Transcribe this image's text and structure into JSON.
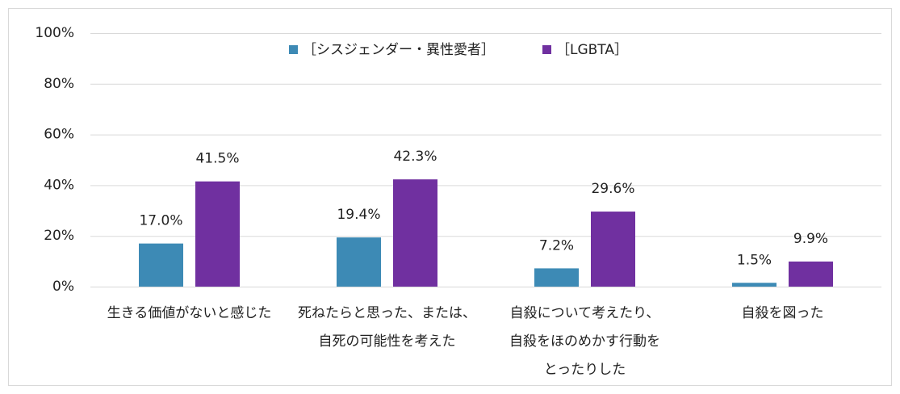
{
  "chart_data": {
    "type": "bar",
    "categories": [
      [
        "生きる価値がないと感じた"
      ],
      [
        "死ねたらと思った、または、",
        "自死の可能性を考えた"
      ],
      [
        "自殺について考えたり、",
        "自殺をほのめかす行動を",
        "とったりした"
      ],
      [
        "自殺を図った"
      ]
    ],
    "series": [
      {
        "name": "［シスジェンダー・異性愛者］",
        "color": "#3d8ab5",
        "values": [
          17.0,
          19.4,
          7.2,
          1.5
        ],
        "value_labels": [
          "17.0%",
          "19.4%",
          "7.2%",
          "1.5%"
        ]
      },
      {
        "name": "［LGBTA］",
        "color": "#7030a0",
        "values": [
          41.5,
          42.3,
          29.6,
          9.9
        ],
        "value_labels": [
          "41.5%",
          "42.3%",
          "29.6%",
          "9.9%"
        ]
      }
    ],
    "ylim": [
      0,
      100
    ],
    "yticks": [
      {
        "value": 0,
        "label": "0%"
      },
      {
        "value": 20,
        "label": "20%"
      },
      {
        "value": 40,
        "label": "40%"
      },
      {
        "value": 60,
        "label": "60%"
      },
      {
        "value": 80,
        "label": "80%"
      },
      {
        "value": 100,
        "label": "100%"
      }
    ],
    "grid": true,
    "legend": "top"
  }
}
